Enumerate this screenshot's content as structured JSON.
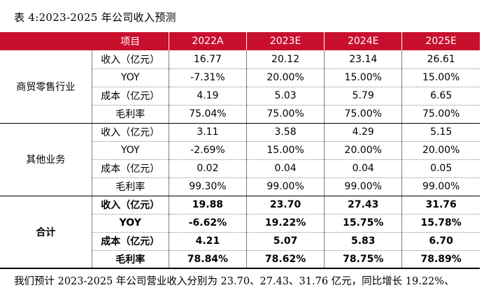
{
  "caption": "表 4:2023-2025 年公司收入预测",
  "table": {
    "header": [
      "",
      "项目",
      "2022A",
      "2023E",
      "2024E",
      "2025E"
    ],
    "groups": [
      {
        "name": "商贸零售行业",
        "rows": [
          {
            "item": "收入（亿元）",
            "values": [
              "16.77",
              "20.12",
              "23.14",
              "26.61"
            ]
          },
          {
            "item": "YOY",
            "values": [
              "-7.31%",
              "20.00%",
              "15.00%",
              "15.00%"
            ]
          },
          {
            "item": "成本（亿元）",
            "values": [
              "4.19",
              "5.03",
              "5.79",
              "6.65"
            ]
          },
          {
            "item": "毛利率",
            "values": [
              "75.04%",
              "75.00%",
              "75.00%",
              "75.00%"
            ]
          }
        ]
      },
      {
        "name": "其他业务",
        "rows": [
          {
            "item": "收入（亿元）",
            "values": [
              "3.11",
              "3.58",
              "4.29",
              "5.15"
            ]
          },
          {
            "item": "YOY",
            "values": [
              "-2.69%",
              "15.00%",
              "20.00%",
              "20.00%"
            ]
          },
          {
            "item": "成本（亿元）",
            "values": [
              "0.02",
              "0.04",
              "0.04",
              "0.05"
            ]
          },
          {
            "item": "毛利率",
            "values": [
              "99.30%",
              "99.00%",
              "99.00%",
              "99.00%"
            ]
          }
        ]
      },
      {
        "name": "合计",
        "rows": [
          {
            "item": "收入（亿元）",
            "values": [
              "19.88",
              "23.70",
              "27.43",
              "31.76"
            ]
          },
          {
            "item": "YOY",
            "values": [
              "-6.62%",
              "19.22%",
              "15.75%",
              "15.78%"
            ]
          },
          {
            "item": "成本（亿元）",
            "values": [
              "4.21",
              "5.07",
              "5.83",
              "6.70"
            ]
          },
          {
            "item": "毛利率",
            "values": [
              "78.84%",
              "78.62%",
              "78.75%",
              "78.89%"
            ]
          }
        ]
      }
    ]
  },
  "paragraph": "我们预计 2023-2025 年公司营业收入分别为 23.70、27.43、31.76 亿元，同比增长 19.22%、",
  "colors": {
    "header_bg": "#c8102e",
    "header_text": "#ffffff"
  }
}
